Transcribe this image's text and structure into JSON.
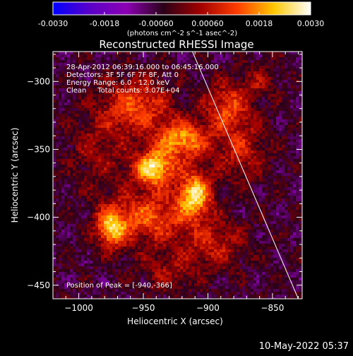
{
  "colorbar": {
    "tick_labels": [
      "-0.0030",
      "-0.0018",
      "-0.00060",
      "0.00060",
      "0.0018",
      "0.0030"
    ],
    "range": [
      -0.003,
      0.003
    ],
    "units_text": "(photons cm^-2 s^-1 asec^-2)",
    "colors": [
      "#0000ff",
      "#5a00c8",
      "#8c00b4",
      "#2a0018",
      "#a00000",
      "#ff3c00",
      "#ffc800",
      "#ffffff"
    ]
  },
  "chart_data": {
    "type": "heatmap",
    "title": "Reconstructed RHESSI Image",
    "xlabel": "Heliocentric X (arcsec)",
    "ylabel": "Heliocentric Y (arcsec)",
    "xlim": [
      -1020,
      -827
    ],
    "ylim": [
      -460,
      -278
    ],
    "xticks": [
      -1000,
      -950,
      -900,
      -850
    ],
    "yticks": [
      -300,
      -350,
      -400,
      -450
    ],
    "grid": false,
    "limb_line": {
      "x": [
        -912,
        -830
      ],
      "y": [
        -278,
        -460
      ]
    },
    "annotations": [
      "28-Apr-2012 06:39:16.000 to 06:45:16.000",
      "Detectors: 3F 5F 6F 7F 8F, Att 0",
      "Energy Range: 6.0 - 12.0 keV",
      "Clean     Total counts: 3.07E+04"
    ],
    "peak_label": "Position of Peak = [-940,-366]",
    "peak": [
      -940,
      -366
    ],
    "sources": [
      {
        "x": -942,
        "y": -364,
        "amp": 0.003,
        "sx": 11,
        "sy": 9
      },
      {
        "x": -910,
        "y": -383,
        "amp": 0.0028,
        "sx": 9,
        "sy": 12
      },
      {
        "x": -920,
        "y": -343,
        "amp": 0.0024,
        "sx": 14,
        "sy": 10
      },
      {
        "x": -975,
        "y": -408,
        "amp": 0.0024,
        "sx": 8,
        "sy": 10
      },
      {
        "x": -955,
        "y": -318,
        "amp": 0.0018,
        "sx": 18,
        "sy": 14
      },
      {
        "x": -945,
        "y": -400,
        "amp": 0.0018,
        "sx": 22,
        "sy": 14
      },
      {
        "x": -885,
        "y": -318,
        "amp": 0.0016,
        "sx": 12,
        "sy": 12
      },
      {
        "x": -875,
        "y": -350,
        "amp": 0.0012,
        "sx": 14,
        "sy": 16
      },
      {
        "x": -895,
        "y": -420,
        "amp": 0.0012,
        "sx": 16,
        "sy": 12
      },
      {
        "x": -985,
        "y": -350,
        "amp": 0.0008,
        "sx": 16,
        "sy": 20
      },
      {
        "x": -860,
        "y": -300,
        "amp": 0.0008,
        "sx": 10,
        "sy": 8
      },
      {
        "x": -930,
        "y": -440,
        "amp": 0.0008,
        "sx": 16,
        "sy": 10
      }
    ]
  },
  "footer": {
    "timestamp": "10-May-2022 05:37"
  }
}
